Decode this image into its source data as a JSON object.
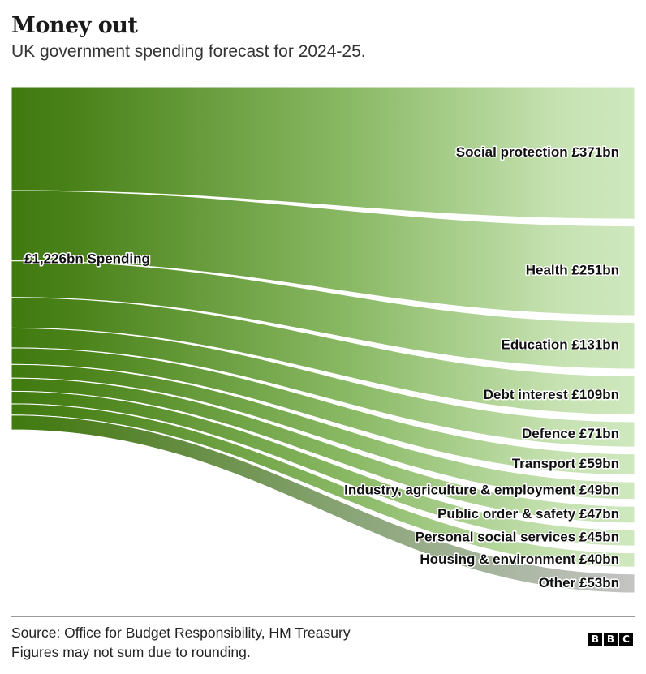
{
  "header": {
    "title": "Money out",
    "subtitle": "UK government spending forecast for 2024-25."
  },
  "colors": {
    "source_dark": "#3f7a0f",
    "destination_light": "#cfe8bf",
    "other_gray": "#c4c4c4"
  },
  "chart_data": {
    "type": "sankey",
    "unit": "£bn",
    "source": {
      "label": "£1,226bn Spending",
      "value": 1226
    },
    "flows": [
      {
        "name": "Social protection",
        "value": 371,
        "label": "Social protection £371bn"
      },
      {
        "name": "Health",
        "value": 251,
        "label": "Health £251bn"
      },
      {
        "name": "Education",
        "value": 131,
        "label": "Education £131bn"
      },
      {
        "name": "Debt interest",
        "value": 109,
        "label": "Debt interest £109bn"
      },
      {
        "name": "Defence",
        "value": 71,
        "label": "Defence £71bn"
      },
      {
        "name": "Transport",
        "value": 59,
        "label": "Transport £59bn"
      },
      {
        "name": "Industry, agriculture & employment",
        "value": 49,
        "label": "Industry, agriculture & employment £49bn"
      },
      {
        "name": "Public order & safety",
        "value": 47,
        "label": "Public order & safety £47bn"
      },
      {
        "name": "Personal social services",
        "value": 45,
        "label": "Personal social services £45bn"
      },
      {
        "name": "Housing & environment",
        "value": 40,
        "label": "Housing & environment £40bn"
      },
      {
        "name": "Other",
        "value": 53,
        "label": "Other £53bn"
      }
    ]
  },
  "footer": {
    "source": "Source: Office for Budget Responsibility, HM Treasury",
    "note": "Figures may not sum due to rounding.",
    "logo_letters": [
      "B",
      "B",
      "C"
    ]
  }
}
